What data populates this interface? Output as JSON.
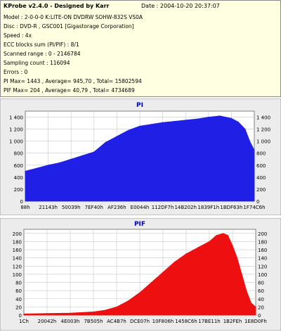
{
  "header": {
    "title": "KProbe v2.4.0 - Designed by Karr",
    "date": "Date : 2004-10-20 20:37:07",
    "lines": [
      "Model : 2-0-0-0 K:LITE-ON DVDRW SOHW-832S  VS0A",
      "Disc : DVD-R , GSC001 [Gigastorage Corporation]",
      "Speed : 4x",
      "ECC blocks sum (PI/PIF) : 8/1",
      "Scanned range : 0 - 2146784",
      "Sampling count : 116094",
      "Errors : 0",
      "PI Max= 1443 , Average= 945,70 , Total= 15802594",
      "PIF Max= 204 , Average= 40,79 , Total= 4734689"
    ]
  },
  "colors": {
    "pi": "#1f1fe6",
    "pif": "#ee1010",
    "panel_bg": "#ececec",
    "plot_bg": "#ffffff",
    "grid": "#c8c8c8",
    "title": "#0000cc"
  },
  "chart_data": [
    {
      "type": "area",
      "title": "PI",
      "ylim": [
        0,
        1500
      ],
      "yticks": [
        0,
        200,
        400,
        600,
        800,
        1000,
        1200,
        1400
      ],
      "ytick_labels": [
        "0",
        "200",
        "400",
        "600",
        "800",
        "1 000",
        "1 200",
        "1 400"
      ],
      "xtick_labels": [
        "88h",
        "21143h",
        "50039h",
        "7EF40h",
        "AF236h",
        "E0044h",
        "112DF7h",
        "14B202h",
        "1839F1h",
        "1BDF63h",
        "1F74C6h"
      ],
      "grid": true,
      "x": [
        0,
        0.05,
        0.1,
        0.15,
        0.2,
        0.25,
        0.3,
        0.35,
        0.4,
        0.45,
        0.5,
        0.55,
        0.6,
        0.65,
        0.7,
        0.75,
        0.8,
        0.85,
        0.9,
        0.93,
        0.96,
        0.98,
        1.0
      ],
      "values": [
        500,
        550,
        600,
        640,
        700,
        760,
        820,
        980,
        1080,
        1180,
        1250,
        1280,
        1310,
        1330,
        1350,
        1370,
        1400,
        1420,
        1380,
        1320,
        1200,
        1000,
        850
      ]
    },
    {
      "type": "area",
      "title": "PIF",
      "ylim": [
        0,
        210
      ],
      "yticks": [
        0,
        20,
        40,
        60,
        80,
        100,
        120,
        140,
        160,
        180,
        200
      ],
      "ytick_labels": [
        "0",
        "20",
        "40",
        "60",
        "80",
        "100",
        "120",
        "140",
        "160",
        "180",
        "200"
      ],
      "xtick_labels": [
        "1Ch",
        "20042h",
        "4E003h",
        "7B505h",
        "AC4B7h",
        "DCE07h",
        "10F806h",
        "1458C6h",
        "17BE11h",
        "1B2FEh",
        "1E8D0Fh"
      ],
      "grid": true,
      "x": [
        0,
        0.1,
        0.2,
        0.3,
        0.35,
        0.4,
        0.45,
        0.5,
        0.55,
        0.6,
        0.65,
        0.7,
        0.75,
        0.8,
        0.83,
        0.86,
        0.88,
        0.9,
        0.92,
        0.94,
        0.96,
        0.98,
        1.0
      ],
      "values": [
        3,
        4,
        5,
        8,
        12,
        20,
        35,
        55,
        80,
        105,
        130,
        150,
        165,
        180,
        195,
        200,
        195,
        170,
        140,
        100,
        60,
        30,
        20
      ]
    }
  ]
}
